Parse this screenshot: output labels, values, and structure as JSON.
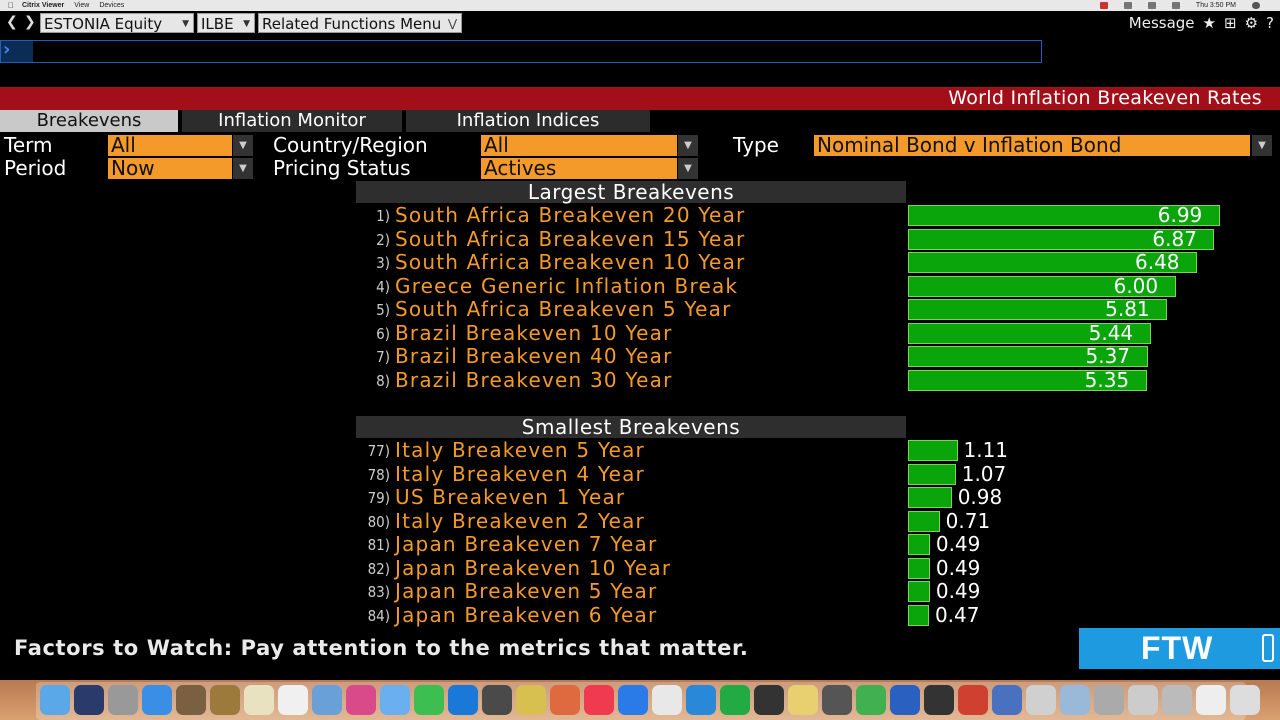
{
  "menubar": {
    "app": "Citrix Viewer",
    "items": [
      "View",
      "Devices"
    ],
    "clock": "Thu 3:50 PM"
  },
  "toolbar": {
    "security": "ESTONIA Equity",
    "source": "ILBE",
    "menu": "Related Functions  Menu",
    "message": "Message",
    "icons": [
      "star-icon",
      "export-icon",
      "gear-icon",
      "help-icon"
    ]
  },
  "title": "World Inflation Breakeven Rates",
  "tabs": [
    "Breakevens",
    "Inflation Monitor",
    "Inflation Indices"
  ],
  "filters": {
    "term_label": "Term",
    "term_value": "All",
    "country_label": "Country/Region",
    "country_value": "All",
    "type_label": "Type",
    "type_value": "Nominal Bond v Inflation Bond",
    "period_label": "Period",
    "period_value": "Now",
    "pricing_label": "Pricing Status",
    "pricing_value": "Actives"
  },
  "largest": {
    "heading": "Largest Breakevens",
    "rows": [
      {
        "rank": "1)",
        "name": "South Africa Breakeven 20 Year",
        "value": "6.99"
      },
      {
        "rank": "2)",
        "name": "South Africa Breakeven 15 Year",
        "value": "6.87"
      },
      {
        "rank": "3)",
        "name": "South Africa Breakeven 10 Year",
        "value": "6.48"
      },
      {
        "rank": "4)",
        "name": "Greece Generic Inflation Break",
        "value": "6.00"
      },
      {
        "rank": "5)",
        "name": "South Africa Breakeven 5 Year",
        "value": "5.81"
      },
      {
        "rank": "6)",
        "name": "Brazil Breakeven 10 Year",
        "value": "5.44"
      },
      {
        "rank": "7)",
        "name": "Brazil Breakeven 40 Year",
        "value": "5.37"
      },
      {
        "rank": "8)",
        "name": "Brazil Breakeven 30 Year",
        "value": "5.35"
      }
    ]
  },
  "smallest": {
    "heading": "Smallest Breakevens",
    "rows": [
      {
        "rank": "77)",
        "name": "Italy Breakeven 5 Year",
        "value": "1.11"
      },
      {
        "rank": "78)",
        "name": "Italy Breakeven 4 Year",
        "value": "1.07"
      },
      {
        "rank": "79)",
        "name": "US Breakeven 1 Year",
        "value": "0.98"
      },
      {
        "rank": "80)",
        "name": "Italy Breakeven 2 Year",
        "value": "0.71"
      },
      {
        "rank": "81)",
        "name": "Japan Breakeven 7 Year",
        "value": "0.49"
      },
      {
        "rank": "82)",
        "name": "Japan Breakeven 10 Year",
        "value": "0.49"
      },
      {
        "rank": "83)",
        "name": "Japan Breakeven 5 Year",
        "value": "0.49"
      },
      {
        "rank": "84)",
        "name": "Japan Breakeven 6 Year",
        "value": "0.47"
      }
    ]
  },
  "ticker": "Factors to Watch: Pay attention to the metrics that matter.",
  "ftw": "FTW",
  "colors": {
    "accent": "#f39a2a",
    "title_bar": "#a30f19",
    "bar": "#0aa50a",
    "ftw": "#1e9be0"
  }
}
